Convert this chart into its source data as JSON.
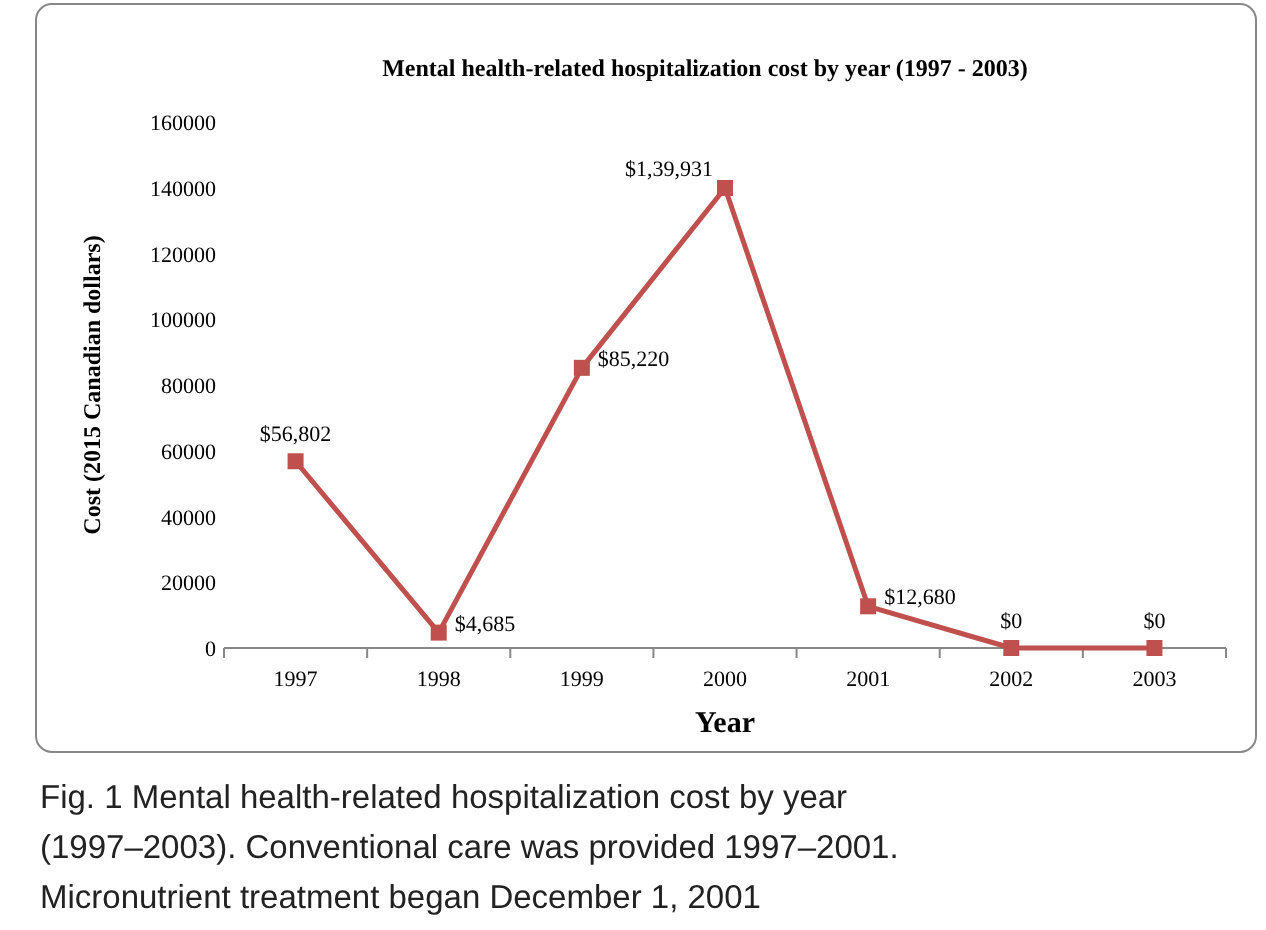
{
  "chart_data": {
    "type": "line",
    "title": "Mental health-related hospitalization cost by year (1997 - 2003)",
    "xlabel": "Year",
    "ylabel": "Cost (2015 Canadian dollars)",
    "categories": [
      "1997",
      "1998",
      "1999",
      "2000",
      "2001",
      "2002",
      "2003"
    ],
    "series": [
      {
        "color": "#c0504d",
        "values": [
          56802,
          4685,
          85220,
          139931,
          12680,
          0,
          0
        ],
        "value_labels": [
          "$56,802",
          "$4,685",
          "$85,220",
          "$1,39,931",
          "$12,680",
          "$0",
          "$0"
        ]
      }
    ],
    "ylim": [
      0,
      160000
    ],
    "yticks": [
      0,
      20000,
      40000,
      60000,
      80000,
      100000,
      120000,
      140000,
      160000
    ],
    "grid": false,
    "marker": "square",
    "line_style": "solid",
    "annotations": [
      "Fig. 1 Mental health-related hospitalization cost by year (1997–2003). Conventional care was provided 1997–2001. Micronutrient treatment began December 1, 2001"
    ]
  }
}
